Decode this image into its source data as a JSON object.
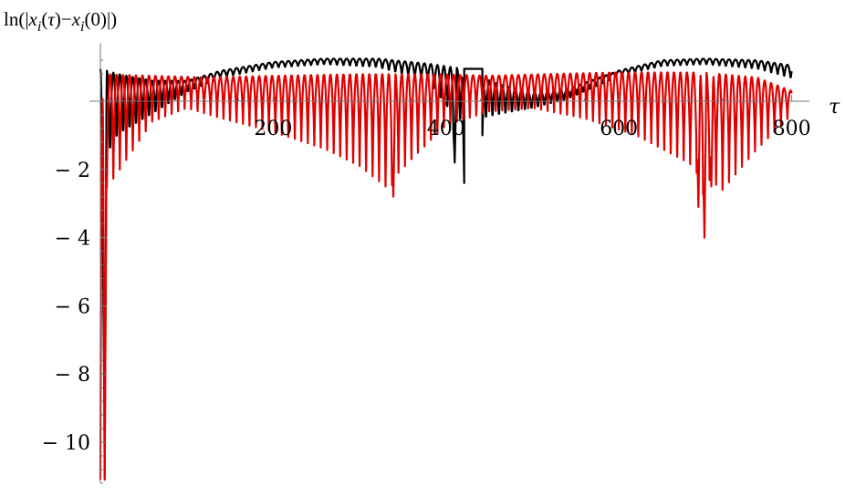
{
  "chart_data": {
    "type": "line",
    "ylabel": "ln(|x_i(τ)−x_i(0)|)",
    "xlabel": "τ",
    "xlim": [
      0,
      810
    ],
    "ylim": [
      -11.2,
      1.7
    ],
    "x_ticks": [
      {
        "value": 200,
        "label": "200"
      },
      {
        "value": 400,
        "label": "400"
      },
      {
        "value": 600,
        "label": "600"
      },
      {
        "value": 800,
        "label": "800"
      }
    ],
    "y_ticks": [
      {
        "value": -2,
        "label": "− 2"
      },
      {
        "value": -4,
        "label": "− 4"
      },
      {
        "value": -6,
        "label": "− 6"
      },
      {
        "value": -8,
        "label": "− 8"
      },
      {
        "value": -10,
        "label": "− 10"
      }
    ],
    "grid": false,
    "legend": "none",
    "series": [
      {
        "color": "#000000",
        "x_range": [
          0,
          800
        ],
        "oscillation_period": 7.5,
        "envelope_max": [
          [
            0,
            0.95
          ],
          [
            20,
            0.8
          ],
          [
            60,
            0.6
          ],
          [
            100,
            0.6
          ],
          [
            140,
            0.9
          ],
          [
            200,
            1.15
          ],
          [
            260,
            1.25
          ],
          [
            320,
            1.25
          ],
          [
            380,
            1.1
          ],
          [
            420,
            0.95
          ],
          [
            460,
            0.5
          ],
          [
            500,
            0.25
          ],
          [
            540,
            0.35
          ],
          [
            600,
            0.9
          ],
          [
            650,
            1.2
          ],
          [
            700,
            1.25
          ],
          [
            760,
            1.2
          ],
          [
            800,
            1.05
          ]
        ],
        "envelope_min": [
          [
            0,
            -11.0
          ],
          [
            5,
            -2.3
          ],
          [
            20,
            -1.4
          ],
          [
            60,
            -0.6
          ],
          [
            100,
            0.2
          ],
          [
            140,
            0.65
          ],
          [
            200,
            0.95
          ],
          [
            260,
            1.05
          ],
          [
            320,
            0.95
          ],
          [
            380,
            0.5
          ],
          [
            400,
            -0.4
          ],
          [
            420,
            -1.0
          ],
          [
            460,
            -0.6
          ],
          [
            500,
            -0.3
          ],
          [
            540,
            0.0
          ],
          [
            600,
            0.7
          ],
          [
            650,
            1.0
          ],
          [
            700,
            1.05
          ],
          [
            760,
            0.9
          ],
          [
            800,
            0.6
          ]
        ],
        "spikes": [
          {
            "x": 5,
            "y": -11.0
          },
          {
            "x": 410,
            "y": -1.8
          },
          {
            "x": 421,
            "y": -2.4
          },
          {
            "x": 442,
            "y": -1.0
          }
        ],
        "flat_segment": {
          "x": [
            421,
            442
          ],
          "y": 0.95
        }
      },
      {
        "color": "#e00000",
        "x_range": [
          0,
          800
        ],
        "oscillation_period": 7.5,
        "envelope_max": [
          [
            0,
            0.8
          ],
          [
            60,
            0.75
          ],
          [
            120,
            0.7
          ],
          [
            200,
            0.75
          ],
          [
            300,
            0.8
          ],
          [
            380,
            0.8
          ],
          [
            450,
            0.75
          ],
          [
            520,
            0.8
          ],
          [
            600,
            0.85
          ],
          [
            700,
            0.85
          ],
          [
            760,
            0.7
          ],
          [
            800,
            0.3
          ]
        ],
        "envelope_min": [
          [
            0,
            -11.1
          ],
          [
            5,
            -2.6
          ],
          [
            20,
            -2.1
          ],
          [
            60,
            -0.6
          ],
          [
            100,
            -0.2
          ],
          [
            140,
            -0.5
          ],
          [
            200,
            -0.9
          ],
          [
            260,
            -1.4
          ],
          [
            300,
            -1.9
          ],
          [
            330,
            -2.5
          ],
          [
            360,
            -1.7
          ],
          [
            400,
            -0.7
          ],
          [
            450,
            -0.3
          ],
          [
            500,
            -0.2
          ],
          [
            560,
            -0.5
          ],
          [
            620,
            -1.0
          ],
          [
            680,
            -1.8
          ],
          [
            720,
            -2.6
          ],
          [
            760,
            -1.4
          ],
          [
            800,
            -0.4
          ]
        ],
        "spikes": [
          {
            "x": 5,
            "y": -11.1
          },
          {
            "x": 339,
            "y": -2.8
          },
          {
            "x": 692,
            "y": -3.1
          },
          {
            "x": 699,
            "y": -4.0
          },
          {
            "x": 707,
            "y": -2.5
          }
        ]
      }
    ]
  }
}
